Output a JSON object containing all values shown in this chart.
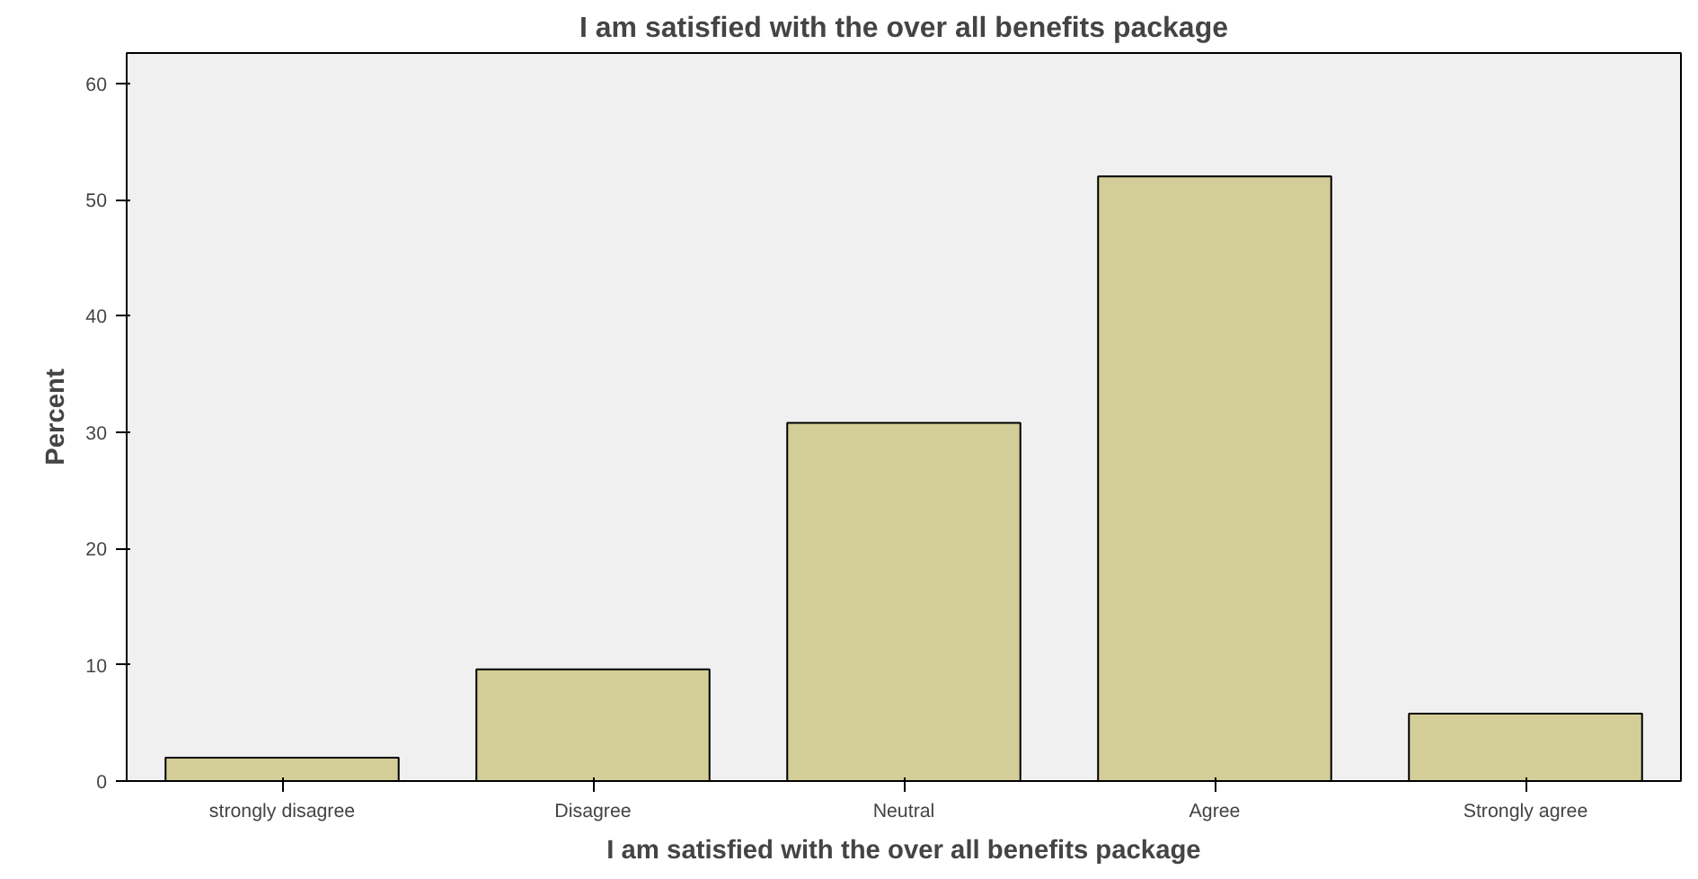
{
  "chart_data": {
    "type": "bar",
    "title": "I am satisfied with the over all benefits package",
    "xlabel": "I am satisfied with the over all benefits package",
    "ylabel": "Percent",
    "categories": [
      "strongly disagree",
      "Disagree",
      "Neutral",
      "Agree",
      "Strongly agree"
    ],
    "values": [
      2.0,
      9.6,
      30.8,
      52.0,
      5.8
    ],
    "color": "#d3ce97",
    "ylim": [
      0,
      62.6
    ],
    "yticks": [
      0,
      10,
      20,
      30,
      40,
      50,
      60
    ],
    "grid": false
  }
}
